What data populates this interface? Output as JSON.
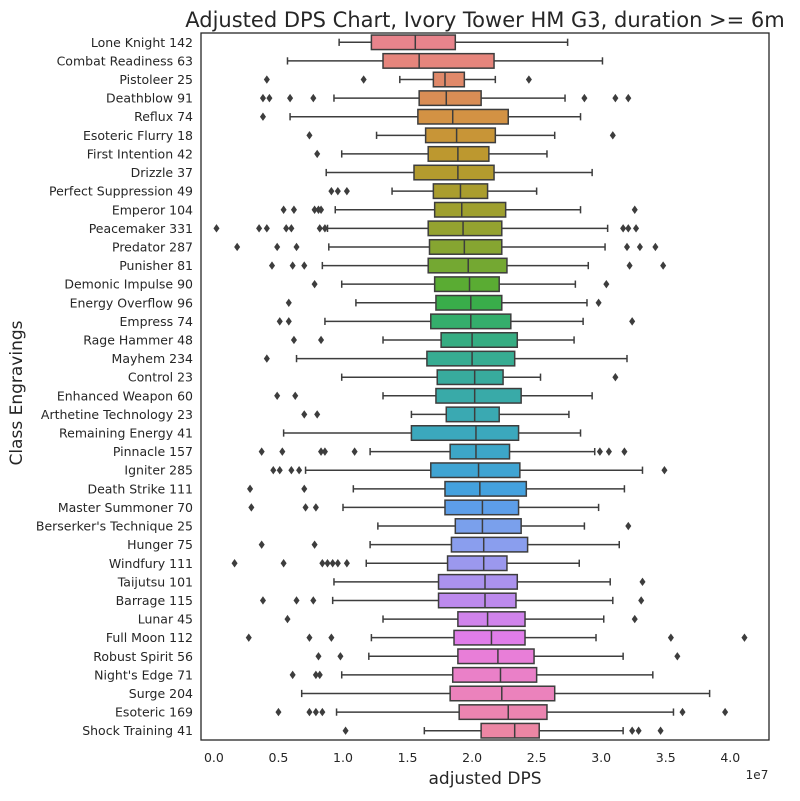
{
  "chart_data": {
    "type": "boxplot",
    "orientation": "horizontal",
    "title": "Adjusted DPS Chart, Ivory Tower HM G3,  duration >= 6m",
    "xlabel": "adjusted DPS",
    "ylabel": "Class Engravings",
    "x_multiplier_label": "1e7",
    "xlim": [
      -0.1,
      4.3
    ],
    "x_ticks": [
      0.0,
      0.5,
      1.0,
      1.5,
      2.0,
      2.5,
      3.0,
      3.5,
      4.0
    ],
    "x_tick_labels": [
      "0.0",
      "0.5",
      "1.0",
      "1.5",
      "2.0",
      "2.5",
      "3.0",
      "3.5",
      "4.0"
    ],
    "categories": [
      {
        "label": "Lone Knight 142",
        "color": "#e8848c",
        "whisker_low": 0.97,
        "q1": 1.22,
        "median": 1.56,
        "q3": 1.87,
        "whisker_high": 2.74,
        "fliers": []
      },
      {
        "label": "Combat Readiness 63",
        "color": "#e6857c",
        "whisker_low": 0.57,
        "q1": 1.31,
        "median": 1.59,
        "q3": 2.17,
        "whisker_high": 3.01,
        "fliers": []
      },
      {
        "label": "Pistoleer 25",
        "color": "#e0896a",
        "whisker_low": 1.44,
        "q1": 1.7,
        "median": 1.79,
        "q3": 1.94,
        "whisker_high": 2.18,
        "fliers": [
          0.41,
          1.16,
          2.44
        ]
      },
      {
        "label": "Deathblow 91",
        "color": "#d98d55",
        "whisker_low": 0.93,
        "q1": 1.59,
        "median": 1.8,
        "q3": 2.07,
        "whisker_high": 2.72,
        "fliers": [
          0.38,
          0.43,
          0.59,
          0.77,
          2.87,
          3.11,
          3.21
        ]
      },
      {
        "label": "Reflux 74",
        "color": "#d39244",
        "whisker_low": 0.59,
        "q1": 1.58,
        "median": 1.85,
        "q3": 2.28,
        "whisker_high": 2.84,
        "fliers": [
          0.38
        ]
      },
      {
        "label": "Esoteric Flurry 18",
        "color": "#c89537",
        "whisker_low": 1.26,
        "q1": 1.64,
        "median": 1.88,
        "q3": 2.18,
        "whisker_high": 2.64,
        "fliers": [
          0.74,
          3.09
        ]
      },
      {
        "label": "First Intention 42",
        "color": "#bd982f",
        "whisker_low": 0.99,
        "q1": 1.66,
        "median": 1.89,
        "q3": 2.13,
        "whisker_high": 2.58,
        "fliers": [
          0.8
        ]
      },
      {
        "label": "Drizzle 37",
        "color": "#b39b2e",
        "whisker_low": 0.87,
        "q1": 1.55,
        "median": 1.89,
        "q3": 2.17,
        "whisker_high": 2.93,
        "fliers": []
      },
      {
        "label": "Perfect Suppression 49",
        "color": "#aa9d2e",
        "whisker_low": 1.38,
        "q1": 1.7,
        "median": 1.91,
        "q3": 2.12,
        "whisker_high": 2.5,
        "fliers": [
          0.91,
          0.96,
          1.03
        ]
      },
      {
        "label": "Emperor 104",
        "color": "#9fa02f",
        "whisker_low": 0.94,
        "q1": 1.71,
        "median": 1.92,
        "q3": 2.26,
        "whisker_high": 2.84,
        "fliers": [
          0.54,
          0.62,
          0.78,
          0.81,
          0.83,
          3.26
        ]
      },
      {
        "label": "Peacemaker 331",
        "color": "#94a230",
        "whisker_low": 0.88,
        "q1": 1.66,
        "median": 1.93,
        "q3": 2.23,
        "whisker_high": 3.05,
        "fliers": [
          0.02,
          0.35,
          0.41,
          0.56,
          0.6,
          0.82,
          0.86,
          3.17,
          3.21,
          3.27
        ]
      },
      {
        "label": "Predator 287",
        "color": "#86a531",
        "whisker_low": 0.89,
        "q1": 1.67,
        "median": 1.94,
        "q3": 2.23,
        "whisker_high": 3.03,
        "fliers": [
          0.18,
          0.49,
          0.64,
          3.2,
          3.3,
          3.42
        ]
      },
      {
        "label": "Punisher 81",
        "color": "#74a832",
        "whisker_low": 0.84,
        "q1": 1.66,
        "median": 1.97,
        "q3": 2.27,
        "whisker_high": 2.9,
        "fliers": [
          0.45,
          0.61,
          0.7,
          3.22,
          3.48
        ]
      },
      {
        "label": "Demonic Impulse 90",
        "color": "#5aac33",
        "whisker_low": 0.99,
        "q1": 1.71,
        "median": 1.98,
        "q3": 2.21,
        "whisker_high": 2.8,
        "fliers": [
          0.78,
          3.04
        ]
      },
      {
        "label": "Energy Overflow 96",
        "color": "#39ad4a",
        "whisker_low": 1.1,
        "q1": 1.72,
        "median": 1.99,
        "q3": 2.23,
        "whisker_high": 2.89,
        "fliers": [
          0.58,
          2.98
        ]
      },
      {
        "label": "Empress 74",
        "color": "#34ae6c",
        "whisker_low": 0.86,
        "q1": 1.68,
        "median": 1.99,
        "q3": 2.3,
        "whisker_high": 2.86,
        "fliers": [
          0.51,
          0.58,
          3.24
        ]
      },
      {
        "label": "Rage Hammer 48",
        "color": "#36ad82",
        "whisker_low": 1.31,
        "q1": 1.76,
        "median": 2.0,
        "q3": 2.35,
        "whisker_high": 2.79,
        "fliers": [
          0.62,
          0.83
        ]
      },
      {
        "label": "Mayhem 234",
        "color": "#37ac92",
        "whisker_low": 0.64,
        "q1": 1.65,
        "median": 2.0,
        "q3": 2.33,
        "whisker_high": 3.2,
        "fliers": [
          0.41
        ]
      },
      {
        "label": "Control 23",
        "color": "#38ab9d",
        "whisker_low": 0.99,
        "q1": 1.73,
        "median": 2.02,
        "q3": 2.24,
        "whisker_high": 2.53,
        "fliers": [
          3.11
        ]
      },
      {
        "label": "Enhanced Weapon 60",
        "color": "#39aaa8",
        "whisker_low": 1.31,
        "q1": 1.72,
        "median": 2.02,
        "q3": 2.38,
        "whisker_high": 2.93,
        "fliers": [
          0.49,
          0.63
        ]
      },
      {
        "label": "Arthetine Technology 23",
        "color": "#3aa9b2",
        "whisker_low": 1.53,
        "q1": 1.8,
        "median": 2.02,
        "q3": 2.21,
        "whisker_high": 2.75,
        "fliers": [
          0.7,
          0.8
        ]
      },
      {
        "label": "Remaining Energy 41",
        "color": "#3ba8bd",
        "whisker_low": 0.54,
        "q1": 1.53,
        "median": 2.03,
        "q3": 2.36,
        "whisker_high": 2.84,
        "fliers": []
      },
      {
        "label": "Pinnacle 157",
        "color": "#3da6c8",
        "whisker_low": 1.21,
        "q1": 1.83,
        "median": 2.03,
        "q3": 2.29,
        "whisker_high": 2.95,
        "fliers": [
          0.37,
          0.53,
          0.83,
          0.86,
          1.09,
          2.99,
          3.06,
          3.18
        ]
      },
      {
        "label": "Igniter 285",
        "color": "#3fa4d3",
        "whisker_low": 0.71,
        "q1": 1.68,
        "median": 2.05,
        "q3": 2.37,
        "whisker_high": 3.32,
        "fliers": [
          0.46,
          0.51,
          0.6,
          0.66,
          3.49
        ]
      },
      {
        "label": "Death Strike 111",
        "color": "#44a1de",
        "whisker_low": 1.08,
        "q1": 1.79,
        "median": 2.06,
        "q3": 2.42,
        "whisker_high": 3.18,
        "fliers": [
          0.28,
          0.7
        ]
      },
      {
        "label": "Master Summoner 70",
        "color": "#5d9ee9",
        "whisker_low": 1.0,
        "q1": 1.79,
        "median": 2.08,
        "q3": 2.36,
        "whisker_high": 2.98,
        "fliers": [
          0.29,
          0.71,
          0.79
        ]
      },
      {
        "label": "Berserker's Technique 25",
        "color": "#7aa0ec",
        "whisker_low": 1.27,
        "q1": 1.87,
        "median": 2.08,
        "q3": 2.38,
        "whisker_high": 2.87,
        "fliers": [
          3.21
        ]
      },
      {
        "label": "Hunger 75",
        "color": "#8a9eee",
        "whisker_low": 1.21,
        "q1": 1.84,
        "median": 2.09,
        "q3": 2.43,
        "whisker_high": 3.14,
        "fliers": [
          0.37,
          0.78
        ]
      },
      {
        "label": "Windfury 111",
        "color": "#9b98ee",
        "whisker_low": 1.18,
        "q1": 1.81,
        "median": 2.09,
        "q3": 2.27,
        "whisker_high": 2.83,
        "fliers": [
          0.16,
          0.54,
          0.84,
          0.88,
          0.92,
          0.96,
          1.03
        ]
      },
      {
        "label": "Taijutsu 101",
        "color": "#ab92ee",
        "whisker_low": 0.93,
        "q1": 1.74,
        "median": 2.1,
        "q3": 2.35,
        "whisker_high": 3.07,
        "fliers": [
          3.32
        ]
      },
      {
        "label": "Barrage 115",
        "color": "#bd8aed",
        "whisker_low": 0.92,
        "q1": 1.74,
        "median": 2.1,
        "q3": 2.34,
        "whisker_high": 3.09,
        "fliers": [
          0.38,
          0.64,
          0.77,
          3.31
        ]
      },
      {
        "label": "Lunar 45",
        "color": "#d083eb",
        "whisker_low": 1.31,
        "q1": 1.89,
        "median": 2.12,
        "q3": 2.41,
        "whisker_high": 3.02,
        "fliers": [
          0.57,
          3.26
        ]
      },
      {
        "label": "Full Moon 112",
        "color": "#e07de9",
        "whisker_low": 1.22,
        "q1": 1.86,
        "median": 2.15,
        "q3": 2.41,
        "whisker_high": 2.96,
        "fliers": [
          0.27,
          0.74,
          0.91,
          3.54,
          4.11
        ]
      },
      {
        "label": "Robust Spirit 56",
        "color": "#e87ed8",
        "whisker_low": 1.2,
        "q1": 1.89,
        "median": 2.2,
        "q3": 2.48,
        "whisker_high": 3.17,
        "fliers": [
          0.81,
          0.98,
          3.59
        ]
      },
      {
        "label": "Night's Edge 71",
        "color": "#ea80c8",
        "whisker_low": 0.99,
        "q1": 1.85,
        "median": 2.22,
        "q3": 2.5,
        "whisker_high": 3.4,
        "fliers": [
          0.61,
          0.79,
          0.82
        ]
      },
      {
        "label": "Surge 204",
        "color": "#eb82bc",
        "whisker_low": 0.68,
        "q1": 1.83,
        "median": 2.23,
        "q3": 2.64,
        "whisker_high": 3.84,
        "fliers": []
      },
      {
        "label": "Esoteric 169",
        "color": "#eb84b0",
        "whisker_low": 0.95,
        "q1": 1.9,
        "median": 2.28,
        "q3": 2.58,
        "whisker_high": 3.56,
        "fliers": [
          0.5,
          0.74,
          0.79,
          0.84,
          3.63,
          3.96
        ]
      },
      {
        "label": "Shock Training 41",
        "color": "#ec86a4",
        "whisker_low": 1.63,
        "q1": 2.07,
        "median": 2.33,
        "q3": 2.52,
        "whisker_high": 3.17,
        "fliers": [
          1.02,
          3.24,
          3.29,
          3.46
        ]
      }
    ]
  }
}
